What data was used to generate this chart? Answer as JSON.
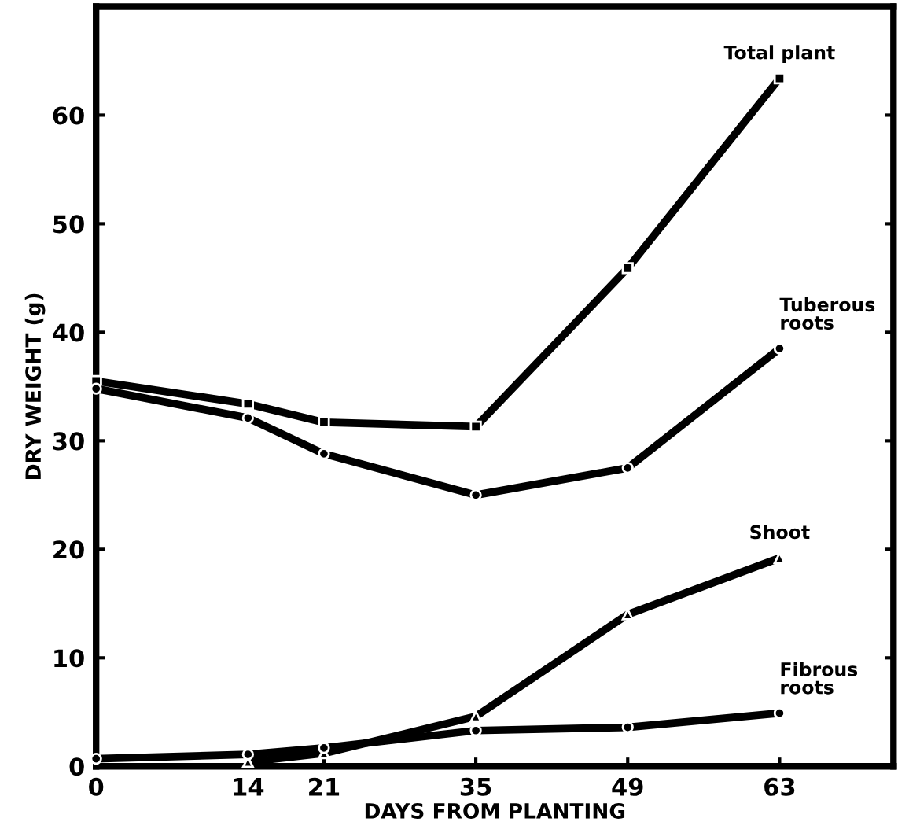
{
  "chart_data": {
    "type": "line",
    "xlabel": "DAYS FROM PLANTING",
    "ylabel": "DRY WEIGHT (g)",
    "xlim": [
      0,
      73.5
    ],
    "ylim": [
      0,
      70
    ],
    "xticks": [
      0,
      14,
      21,
      35,
      49,
      63
    ],
    "yticks": [
      0,
      10,
      20,
      30,
      40,
      50,
      60
    ],
    "grid": false,
    "legend": false,
    "line_style": "solid",
    "series": [
      {
        "name": "Total plant",
        "color": "#000000",
        "marker": "square",
        "x": [
          0,
          14,
          21,
          35,
          49,
          63
        ],
        "values": [
          35.5,
          33.4,
          31.7,
          31.3,
          45.9,
          63.4
        ]
      },
      {
        "name": "Tuberous\nroots",
        "color": "#000000",
        "marker": "circle",
        "x": [
          0,
          14,
          21,
          35,
          49,
          63
        ],
        "values": [
          34.8,
          32.1,
          28.8,
          25.0,
          27.5,
          38.5
        ]
      },
      {
        "name": "Shoot",
        "color": "#000000",
        "marker": "triangle",
        "x": [
          14,
          21,
          35,
          49,
          63
        ],
        "values": [
          0.4,
          1.2,
          4.6,
          14.0,
          19.2
        ]
      },
      {
        "name": "Fibrous\nroots",
        "color": "#000000",
        "marker": "circle",
        "x": [
          0,
          14,
          21,
          35,
          49,
          63
        ],
        "values": [
          0.7,
          1.1,
          1.7,
          3.3,
          3.6,
          4.9
        ]
      }
    ]
  }
}
